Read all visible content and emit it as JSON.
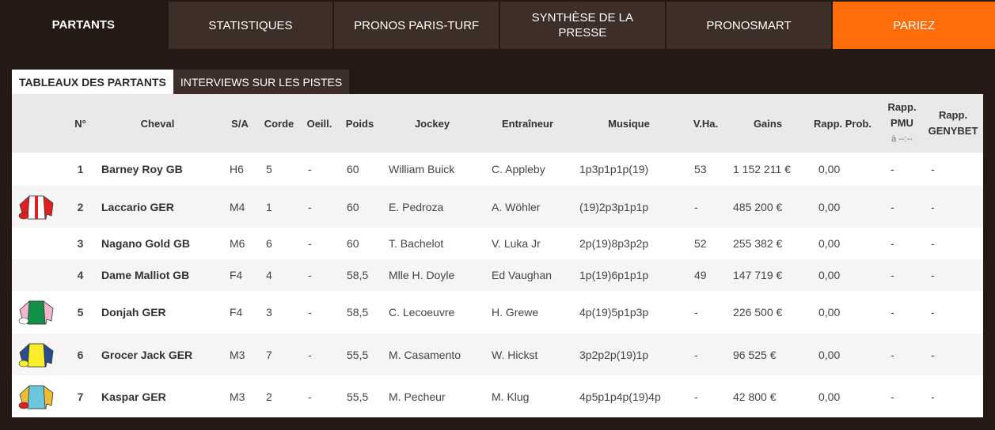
{
  "tabs": [
    {
      "label": "PARTANTS",
      "active": true
    },
    {
      "label": "STATISTIQUES"
    },
    {
      "label": "PRONOS PARIS-TURF"
    },
    {
      "label": "SYNTHÈSE DE LA PRESSE"
    },
    {
      "label": "PRONOSMART"
    },
    {
      "label": "PARIEZ",
      "color": "#ff6c0a"
    }
  ],
  "subtabs": [
    {
      "label": "TABLEAUX DES PARTANTS",
      "active": true
    },
    {
      "label": "INTERVIEWS SUR LES PISTES"
    }
  ],
  "headers": {
    "num": "N°",
    "cheval": "Cheval",
    "sa": "S/A",
    "corde": "Corde",
    "oeill": "Oeill.",
    "poids": "Poids",
    "jockey": "Jockey",
    "entraineur": "Entraîneur",
    "musique": "Musique",
    "vha": "V.Ha.",
    "gains": "Gains",
    "prob": "Rapp. Prob.",
    "pmu": "Rapp. PMU",
    "pmu_time": "à --:--",
    "genybet": "Rapp. GENYBET"
  },
  "rows": [
    {
      "num": "1",
      "cheval": "Barney Roy GB",
      "sa": "H6",
      "corde": "5",
      "oeill": "-",
      "poids": "60",
      "jockey": "William Buick",
      "entraineur": "C. Appleby",
      "musique": "1p3p1p1p(19)",
      "vha": "53",
      "gains": "1 152 211 €",
      "prob": "0,00",
      "pmu": "-",
      "genybet": "-",
      "silk": "none"
    },
    {
      "num": "2",
      "cheval": "Laccario GER",
      "sa": "M4",
      "corde": "1",
      "oeill": "-",
      "poids": "60",
      "jockey": "E. Pedroza",
      "entraineur": "A. Wöhler",
      "musique": "(19)2p3p1p1p",
      "vha": "-",
      "gains": "485 200 €",
      "prob": "0,00",
      "pmu": "-",
      "genybet": "-",
      "silk": "white-red"
    },
    {
      "num": "3",
      "cheval": "Nagano Gold GB",
      "sa": "M6",
      "corde": "6",
      "oeill": "-",
      "poids": "60",
      "jockey": "T. Bachelot",
      "entraineur": "V. Luka Jr",
      "musique": "2p(19)8p3p2p",
      "vha": "52",
      "gains": "255 382 €",
      "prob": "0,00",
      "pmu": "-",
      "genybet": "-",
      "silk": "none"
    },
    {
      "num": "4",
      "cheval": "Dame Malliot GB",
      "sa": "F4",
      "corde": "4",
      "oeill": "-",
      "poids": "58,5",
      "jockey": "Mlle H. Doyle",
      "entraineur": "Ed Vaughan",
      "musique": "1p(19)6p1p1p",
      "vha": "49",
      "gains": "147 719 €",
      "prob": "0,00",
      "pmu": "-",
      "genybet": "-",
      "silk": "none"
    },
    {
      "num": "5",
      "cheval": "Donjah GER",
      "sa": "F4",
      "corde": "3",
      "oeill": "-",
      "poids": "58,5",
      "jockey": "C. Lecoeuvre",
      "entraineur": "H. Grewe",
      "musique": "4p(19)5p1p3p",
      "vha": "-",
      "gains": "226 500 €",
      "prob": "0,00",
      "pmu": "-",
      "genybet": "-",
      "silk": "green-pink"
    },
    {
      "num": "6",
      "cheval": "Grocer Jack GER",
      "sa": "M3",
      "corde": "7",
      "oeill": "-",
      "poids": "55,5",
      "jockey": "M. Casamento",
      "entraineur": "W. Hickst",
      "musique": "3p2p2p(19)1p",
      "vha": "-",
      "gains": "96 525 €",
      "prob": "0,00",
      "pmu": "-",
      "genybet": "-",
      "silk": "yellow-blue"
    },
    {
      "num": "7",
      "cheval": "Kaspar GER",
      "sa": "M3",
      "corde": "2",
      "oeill": "-",
      "poids": "55,5",
      "jockey": "M. Pecheur",
      "entraineur": "M. Klug",
      "musique": "4p5p1p4p(19)4p",
      "vha": "-",
      "gains": "42 800 €",
      "prob": "0,00",
      "pmu": "-",
      "genybet": "-",
      "silk": "cyan-yellow"
    }
  ]
}
